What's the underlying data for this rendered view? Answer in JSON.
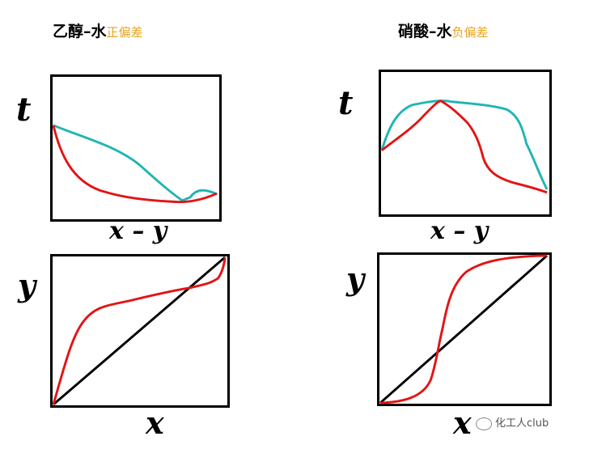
{
  "titles": {
    "left": {
      "main": "乙醇–水",
      "deviation": "正偏差"
    },
    "right": {
      "main": "硝酸–水",
      "deviation": "负偏差"
    }
  },
  "labels": {
    "t_left": "t",
    "t_right": "t",
    "xy_left": "x – y",
    "xy_right": "x – y",
    "y_left": "y",
    "y_right": "y",
    "x_left": "x",
    "x_right": "x"
  },
  "watermark": "化工人club",
  "colors": {
    "dew_curve": "#1fb5b5",
    "bubble_curve": "#e31414",
    "diagonal": "#000000",
    "deviation_text": "#e8a41e"
  }
}
